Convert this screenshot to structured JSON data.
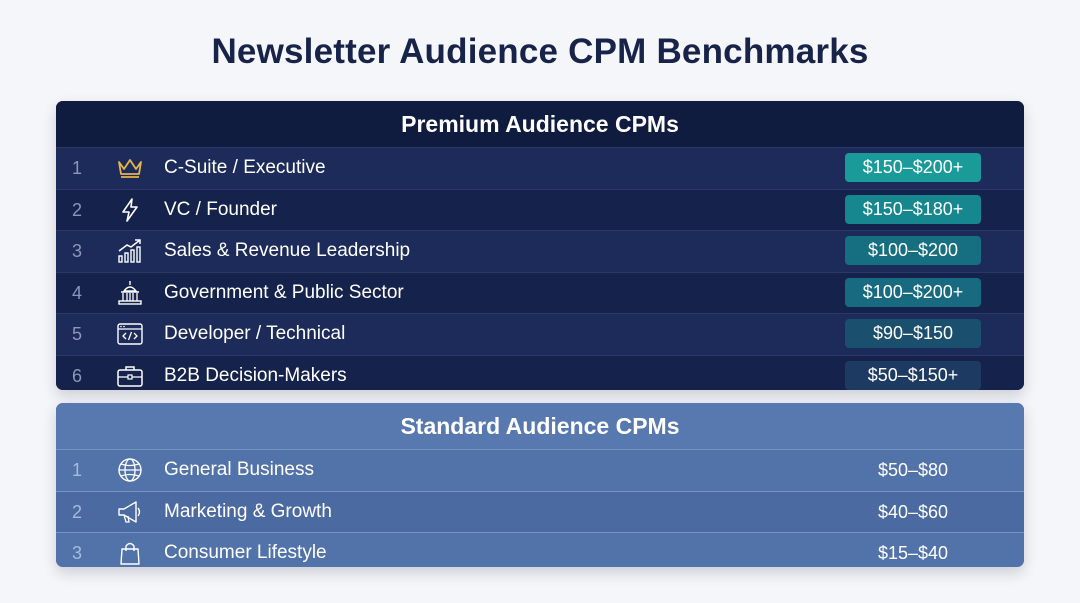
{
  "title": "Newsletter Audience CPM Benchmarks",
  "premium": {
    "heading": "Premium Audience CPMs",
    "rows": [
      {
        "rank": "1",
        "icon": "crown-icon",
        "label": "C-Suite / Executive",
        "value": "$150–$200+",
        "color": "#1b9a9a"
      },
      {
        "rank": "2",
        "icon": "lightning-icon",
        "label": "VC / Founder",
        "value": "$150–$180+",
        "color": "#16868f"
      },
      {
        "rank": "3",
        "icon": "growth-chart-icon",
        "label": "Sales & Revenue Leadership",
        "value": "$100–$200",
        "color": "#156f80"
      },
      {
        "rank": "4",
        "icon": "capitol-building-icon",
        "label": "Government & Public Sector",
        "value": "$100–$200+",
        "color": "#176a7f"
      },
      {
        "rank": "5",
        "icon": "code-window-icon",
        "label": "Developer / Technical",
        "value": "$90–$150",
        "color": "#1a4f6e"
      },
      {
        "rank": "6",
        "icon": "briefcase-icon",
        "label": "B2B Decision-Makers",
        "value": "$50–$150+",
        "color": "#1d3a63"
      }
    ]
  },
  "standard": {
    "heading": "Standard Audience CPMs",
    "rows": [
      {
        "rank": "1",
        "icon": "globe-icon",
        "label": "General Business",
        "value": "$50–$80"
      },
      {
        "rank": "2",
        "icon": "megaphone-icon",
        "label": "Marketing & Growth",
        "value": "$40–$60"
      },
      {
        "rank": "3",
        "icon": "shopping-bag-icon",
        "label": "Consumer Lifestyle",
        "value": "$15–$40"
      }
    ]
  }
}
